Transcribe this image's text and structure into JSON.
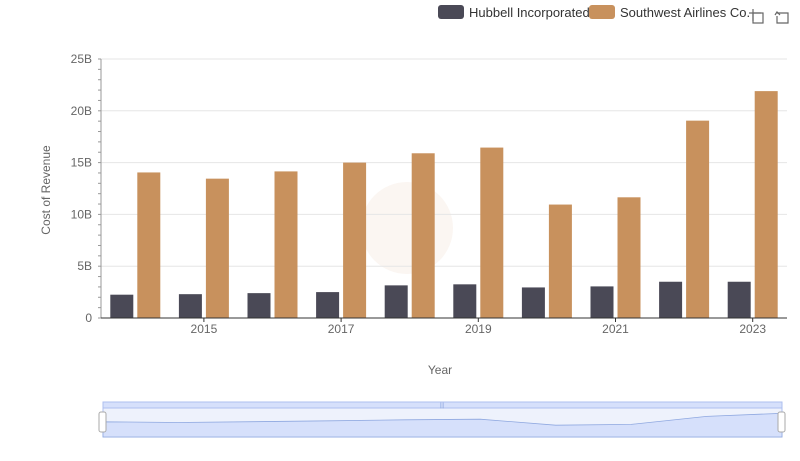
{
  "toolbox": {
    "zoom_icon": "zoom-icon",
    "restore_icon": "restore-icon"
  },
  "colors": {
    "hubbell": "#4a4956",
    "southwest": "#c8915d",
    "grid": "#e6e6e6",
    "axis": "#333333",
    "zoom_fill": "#d6e0fb",
    "zoom_border": "#aebfef",
    "zoom_line": "#8fa8e0"
  },
  "chart_data": {
    "type": "bar",
    "title": "",
    "xlabel": "Year",
    "ylabel": "Cost of Revenue",
    "ylim": [
      0,
      25000000000
    ],
    "y_ticks": [
      "0",
      "5B",
      "10B",
      "15B",
      "20B",
      "25B"
    ],
    "x_tick_labels": [
      "2015",
      "2017",
      "2019",
      "2021",
      "2023"
    ],
    "categories": [
      "2014",
      "2015",
      "2016",
      "2017",
      "2018",
      "2019",
      "2020",
      "2021",
      "2022",
      "2023"
    ],
    "series": [
      {
        "name": "Hubbell Incorporated",
        "values": [
          2250000000,
          2300000000,
          2400000000,
          2500000000,
          3150000000,
          3250000000,
          2950000000,
          3050000000,
          3500000000,
          3500000000
        ]
      },
      {
        "name": "Southwest Airlines Co.",
        "values": [
          14050000000,
          13450000000,
          14150000000,
          15000000000,
          15900000000,
          16450000000,
          10950000000,
          11650000000,
          19050000000,
          21900000000
        ]
      }
    ],
    "legend_position": "top-right",
    "grid": true
  }
}
